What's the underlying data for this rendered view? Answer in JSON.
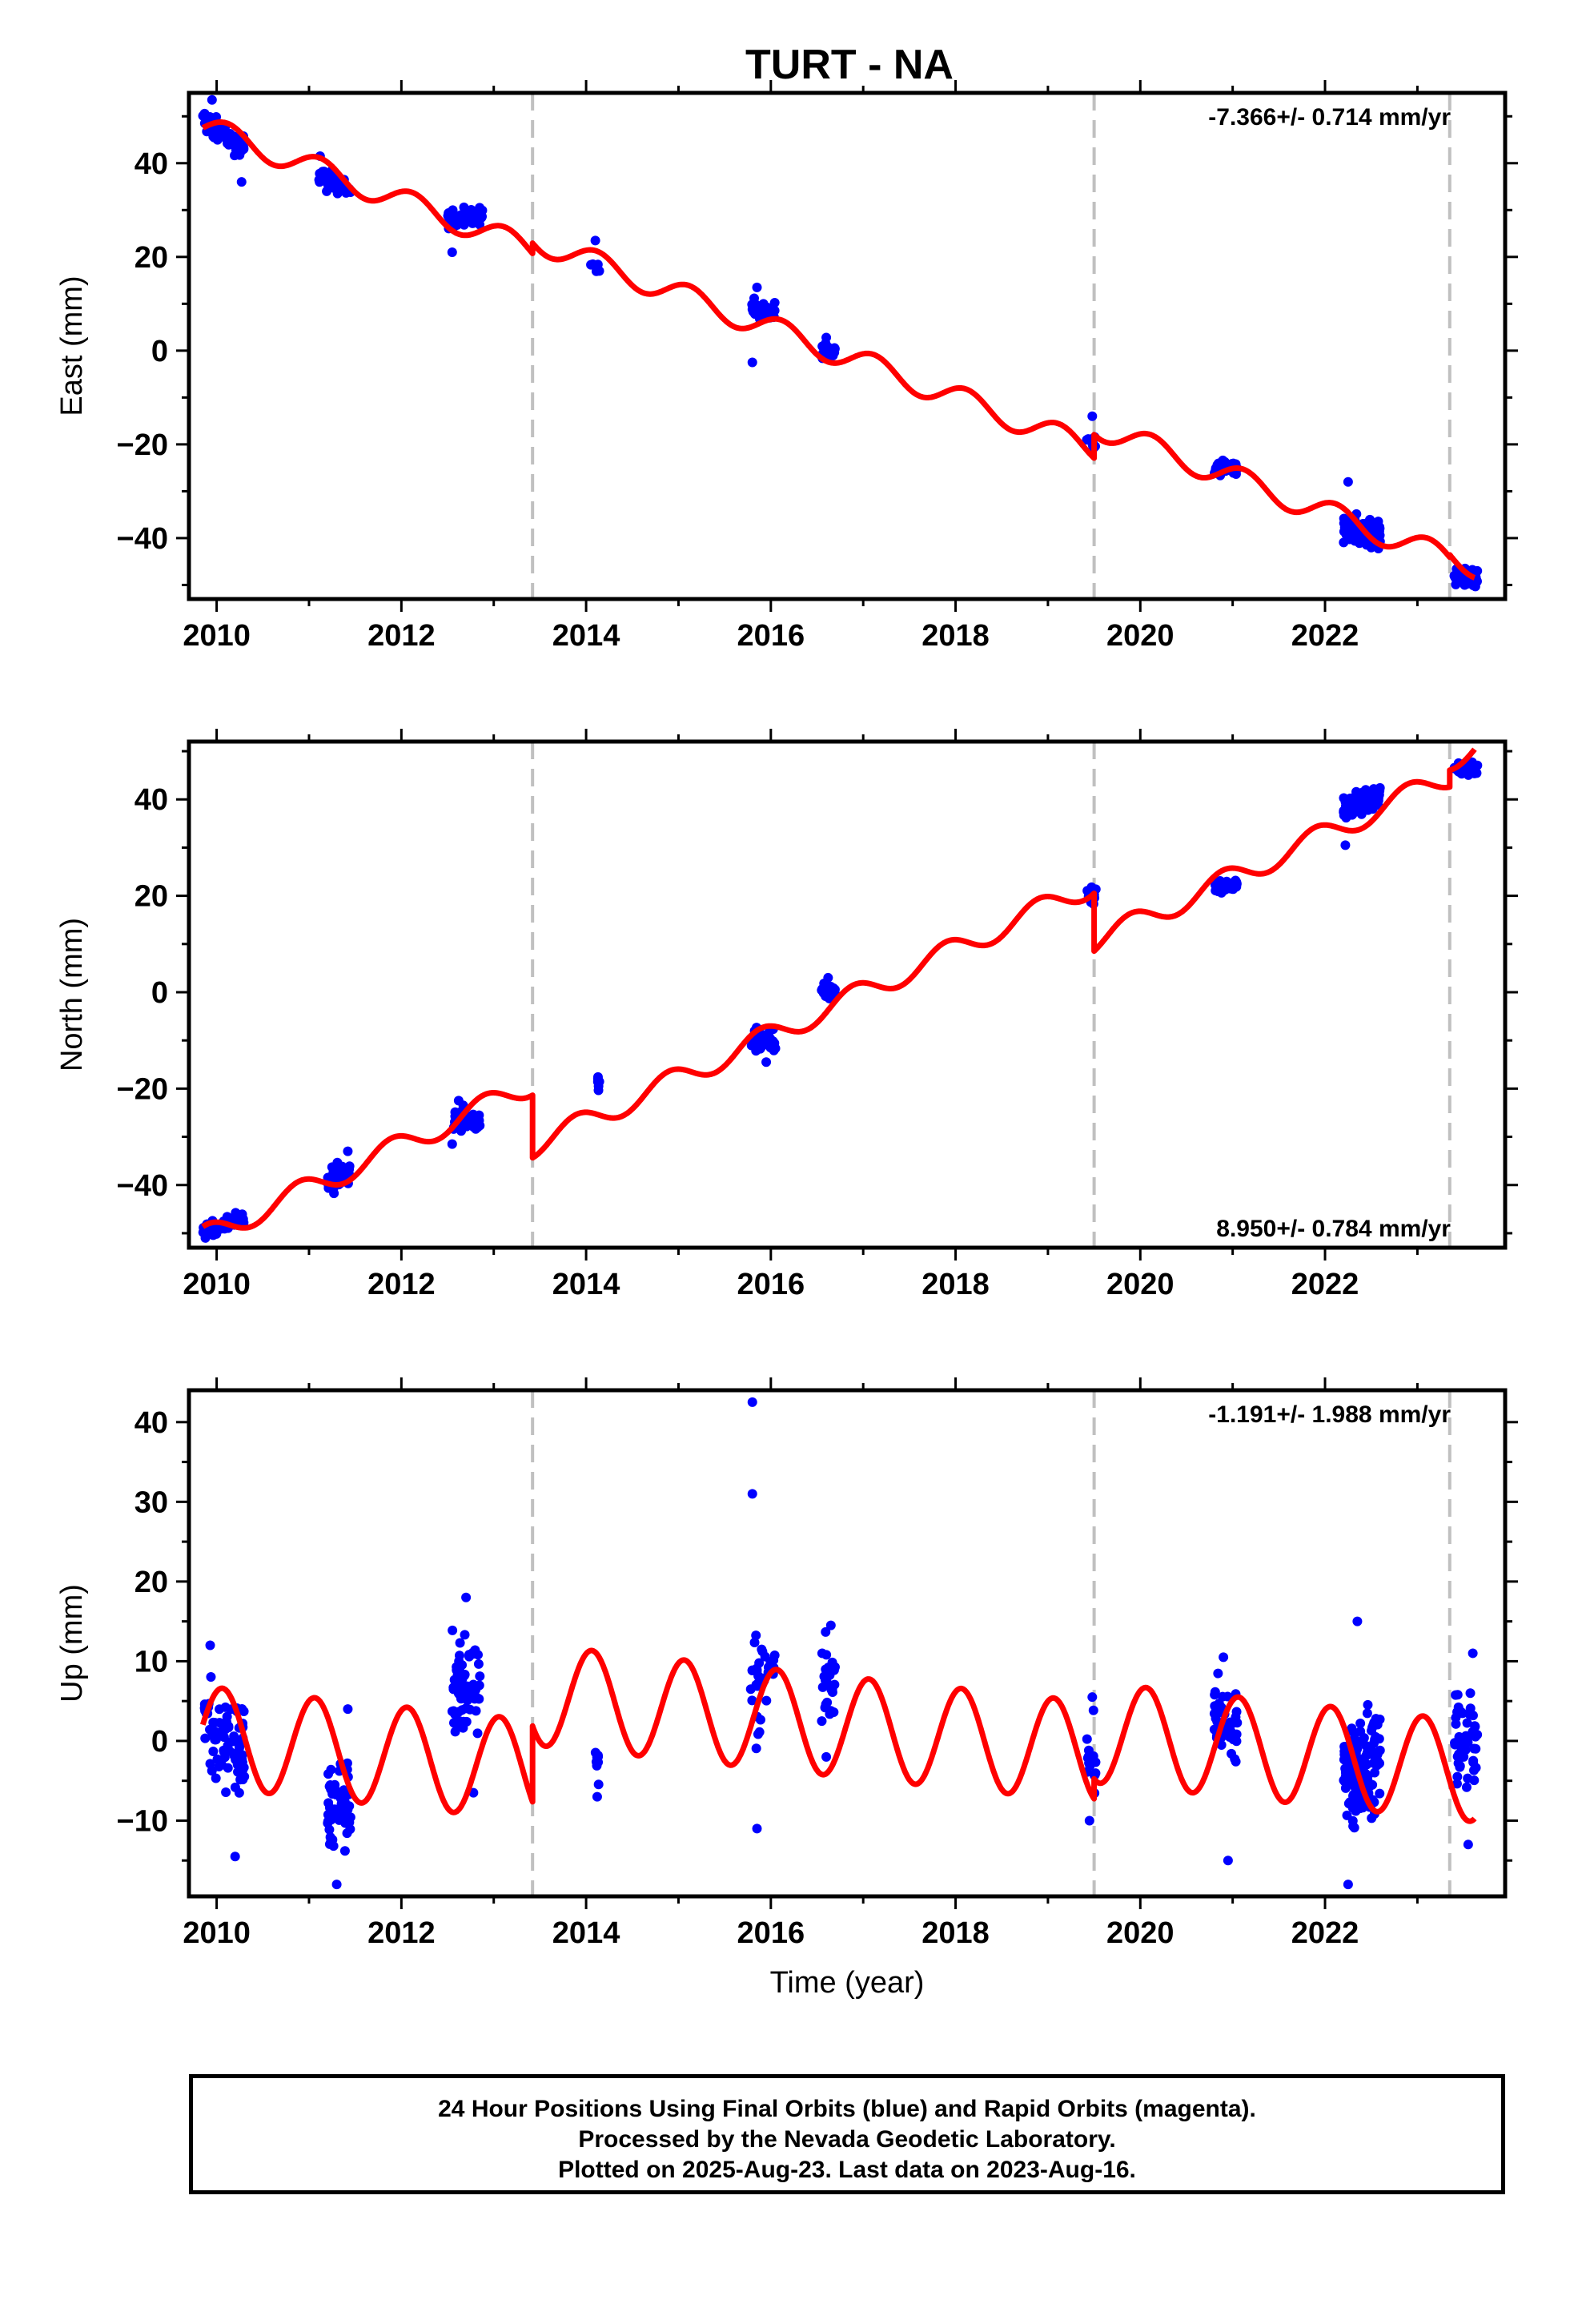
{
  "title": "TURT - NA",
  "footer": {
    "line1": "24 Hour Positions Using Final Orbits (blue) and Rapid Orbits (magenta).",
    "line2": "Processed by the Nevada Geodetic Laboratory.",
    "line3": "Plotted on 2025-Aug-23. Last data on 2023-Aug-16."
  },
  "colors": {
    "data": "#0000ff",
    "model": "#ff0000",
    "break_lines": "#c0c0c0",
    "axis": "#000000"
  },
  "chart_data": [
    {
      "type": "scatter",
      "ylabel": "East (mm)",
      "xlabel": "",
      "xlim": [
        2009.7,
        2023.95
      ],
      "ylim": [
        -53,
        55
      ],
      "xticks": [
        2010,
        2012,
        2014,
        2016,
        2018,
        2020,
        2022
      ],
      "yticks": [
        -40,
        -20,
        0,
        20,
        40
      ],
      "rate_label": "-7.366+/- 0.714 mm/yr",
      "rate_position": "top-right",
      "breaks": [
        2013.42,
        2019.5,
        2023.35
      ],
      "model": {
        "rate": -7.366,
        "t0": 2009.9,
        "offset0": 47.5,
        "annual_amp": 2.6,
        "annual_phase": 0.2,
        "steps": [
          {
            "t": 2013.42,
            "dy": 2.2
          },
          {
            "t": 2019.5,
            "dy": 5.0
          },
          {
            "t": 2023.35,
            "dy": 0.5
          }
        ]
      },
      "series": [
        {
          "clusters": [
            {
              "t0": 2009.85,
              "t1": 2010.3,
              "center": 46.0,
              "slope": -14.0,
              "spread": 2.0,
              "n": 70,
              "outliers": [
                [
                  2009.95,
                  53.5
                ],
                [
                  2010.27,
                  36.0
                ]
              ]
            },
            {
              "t0": 2011.1,
              "t1": 2011.45,
              "center": 36.0,
              "slope": -6.0,
              "spread": 1.8,
              "n": 45,
              "outliers": [
                [
                  2011.12,
                  41.5
                ]
              ]
            },
            {
              "t0": 2012.5,
              "t1": 2012.88,
              "center": 28.5,
              "slope": 3.0,
              "spread": 1.5,
              "n": 55,
              "outliers": [
                [
                  2012.55,
                  21.0
                ]
              ]
            },
            {
              "t0": 2014.05,
              "t1": 2014.15,
              "center": 18.0,
              "slope": 0,
              "spread": 0.8,
              "n": 5,
              "outliers": [
                [
                  2014.1,
                  23.5
                ]
              ]
            },
            {
              "t0": 2015.78,
              "t1": 2016.05,
              "center": 8.5,
              "slope": -8.0,
              "spread": 2.2,
              "n": 35,
              "outliers": [
                [
                  2015.8,
                  -2.5
                ],
                [
                  2015.85,
                  13.5
                ]
              ]
            },
            {
              "t0": 2016.55,
              "t1": 2016.7,
              "center": 0.0,
              "slope": 0,
              "spread": 1.2,
              "n": 25,
              "outliers": [
                [
                  2016.6,
                  2.8
                ]
              ]
            },
            {
              "t0": 2019.42,
              "t1": 2019.52,
              "center": -19.5,
              "slope": 0,
              "spread": 1.5,
              "n": 12,
              "outliers": [
                [
                  2019.48,
                  -14.0
                ]
              ]
            },
            {
              "t0": 2020.8,
              "t1": 2021.05,
              "center": -25.0,
              "slope": -2.0,
              "spread": 1.5,
              "n": 40,
              "outliers": []
            },
            {
              "t0": 2022.2,
              "t1": 2022.6,
              "center": -38.5,
              "slope": -2.0,
              "spread": 2.2,
              "n": 130,
              "outliers": [
                [
                  2022.25,
                  -28.0
                ]
              ]
            },
            {
              "t0": 2023.4,
              "t1": 2023.65,
              "center": -48.5,
              "slope": 0,
              "spread": 1.5,
              "n": 45,
              "outliers": []
            }
          ]
        }
      ]
    },
    {
      "type": "scatter",
      "ylabel": "North (mm)",
      "xlabel": "",
      "xlim": [
        2009.7,
        2023.95
      ],
      "ylim": [
        -53,
        52
      ],
      "xticks": [
        2010,
        2012,
        2014,
        2016,
        2018,
        2020,
        2022
      ],
      "yticks": [
        -40,
        -20,
        0,
        20,
        40
      ],
      "rate_label": "8.950+/- 0.784 mm/yr",
      "rate_position": "bottom-right",
      "breaks": [
        2013.42,
        2019.5,
        2023.35
      ],
      "model": {
        "rate": 8.95,
        "t0": 2009.9,
        "offset0": -50.5,
        "annual_amp": 2.4,
        "annual_phase": 1.6,
        "steps": [
          {
            "t": 2013.42,
            "dy": -13.0
          },
          {
            "t": 2019.5,
            "dy": -12.0
          },
          {
            "t": 2023.35,
            "dy": 3.5
          }
        ]
      },
      "series": [
        {
          "clusters": [
            {
              "t0": 2009.85,
              "t1": 2010.3,
              "center": -48.5,
              "slope": 7.0,
              "spread": 1.3,
              "n": 70,
              "outliers": []
            },
            {
              "t0": 2011.2,
              "t1": 2011.45,
              "center": -38.5,
              "slope": 8.0,
              "spread": 2.2,
              "n": 40,
              "outliers": [
                [
                  2011.42,
                  -33.0
                ]
              ]
            },
            {
              "t0": 2012.55,
              "t1": 2012.85,
              "center": -26.5,
              "slope": 0,
              "spread": 2.0,
              "n": 45,
              "outliers": [
                [
                  2012.55,
                  -31.5
                ],
                [
                  2012.62,
                  -22.5
                ]
              ]
            },
            {
              "t0": 2014.12,
              "t1": 2014.16,
              "center": -19.0,
              "slope": 0,
              "spread": 1.2,
              "n": 8,
              "outliers": []
            },
            {
              "t0": 2015.78,
              "t1": 2016.05,
              "center": -10.0,
              "slope": 0,
              "spread": 2.0,
              "n": 35,
              "outliers": [
                [
                  2015.95,
                  -14.5
                ]
              ]
            },
            {
              "t0": 2016.55,
              "t1": 2016.7,
              "center": 0.0,
              "slope": 0,
              "spread": 1.5,
              "n": 25,
              "outliers": [
                [
                  2016.62,
                  3.0
                ]
              ]
            },
            {
              "t0": 2019.42,
              "t1": 2019.52,
              "center": 20.0,
              "slope": 0,
              "spread": 1.2,
              "n": 12,
              "outliers": []
            },
            {
              "t0": 2020.8,
              "t1": 2021.05,
              "center": 22.0,
              "slope": 4.0,
              "spread": 1.0,
              "n": 40,
              "outliers": []
            },
            {
              "t0": 2022.2,
              "t1": 2022.6,
              "center": 39.5,
              "slope": 6.0,
              "spread": 1.8,
              "n": 130,
              "outliers": [
                [
                  2022.22,
                  30.5
                ]
              ]
            },
            {
              "t0": 2023.4,
              "t1": 2023.65,
              "center": 46.5,
              "slope": 0,
              "spread": 1.2,
              "n": 45,
              "outliers": []
            }
          ]
        }
      ]
    },
    {
      "type": "scatter",
      "ylabel": "Up (mm)",
      "xlabel": "Time (year)",
      "xlim": [
        2009.7,
        2023.95
      ],
      "ylim": [
        -19.5,
        44
      ],
      "xticks": [
        2010,
        2012,
        2014,
        2016,
        2018,
        2020,
        2022
      ],
      "yticks": [
        -10,
        0,
        10,
        20,
        30,
        40
      ],
      "rate_label": "-1.191+/- 1.988 mm/yr",
      "rate_position": "top-right",
      "breaks": [
        2013.42,
        2019.5,
        2023.35
      ],
      "model": {
        "rate": -1.191,
        "t0": 2009.9,
        "offset0": 0.5,
        "annual_amp": 6.3,
        "annual_phase": 0.55,
        "steps": [
          {
            "t": 2013.42,
            "dy": 9.5
          },
          {
            "t": 2019.5,
            "dy": 2.5
          },
          {
            "t": 2023.35,
            "dy": 0.0
          }
        ]
      },
      "series": [
        {
          "clusters": [
            {
              "t0": 2009.85,
              "t1": 2010.3,
              "center": 0.5,
              "slope": -8.0,
              "spread": 5.5,
              "n": 80,
              "outliers": [
                [
                  2010.2,
                  -14.5
                ],
                [
                  2009.93,
                  12.0
                ]
              ]
            },
            {
              "t0": 2011.2,
              "t1": 2011.45,
              "center": -8.0,
              "slope": 8.0,
              "spread": 5.0,
              "n": 60,
              "outliers": [
                [
                  2011.3,
                  -18.0
                ],
                [
                  2011.42,
                  4.0
                ]
              ]
            },
            {
              "t0": 2012.55,
              "t1": 2012.85,
              "center": 7.0,
              "slope": 0,
              "spread": 5.0,
              "n": 70,
              "outliers": [
                [
                  2012.7,
                  18.0
                ],
                [
                  2012.78,
                  -6.5
                ]
              ]
            },
            {
              "t0": 2014.1,
              "t1": 2014.15,
              "center": -3.0,
              "slope": 0,
              "spread": 2.5,
              "n": 8,
              "outliers": [
                [
                  2014.12,
                  -7.0
                ]
              ]
            },
            {
              "t0": 2015.78,
              "t1": 2016.05,
              "center": 7.0,
              "slope": 0,
              "spread": 5.0,
              "n": 35,
              "outliers": [
                [
                  2015.8,
                  42.5
                ],
                [
                  2015.8,
                  31.0
                ],
                [
                  2015.85,
                  -11.0
                ]
              ]
            },
            {
              "t0": 2016.55,
              "t1": 2016.7,
              "center": 7.5,
              "slope": 0,
              "spread": 3.5,
              "n": 30,
              "outliers": [
                [
                  2016.6,
                  -2.0
                ],
                [
                  2016.65,
                  14.5
                ]
              ]
            },
            {
              "t0": 2019.42,
              "t1": 2019.52,
              "center": -2.0,
              "slope": 0,
              "spread": 3.5,
              "n": 15,
              "outliers": [
                [
                  2019.45,
                  -10.0
                ],
                [
                  2019.48,
                  5.5
                ]
              ]
            },
            {
              "t0": 2020.8,
              "t1": 2021.05,
              "center": 2.0,
              "slope": -4.0,
              "spread": 4.0,
              "n": 45,
              "outliers": [
                [
                  2020.95,
                  -15.0
                ],
                [
                  2020.9,
                  10.5
                ]
              ]
            },
            {
              "t0": 2022.2,
              "t1": 2022.6,
              "center": -3.0,
              "slope": 4.0,
              "spread": 5.0,
              "n": 150,
              "outliers": [
                [
                  2022.25,
                  -18.0
                ],
                [
                  2022.35,
                  15.0
                ]
              ]
            },
            {
              "t0": 2023.4,
              "t1": 2023.65,
              "center": 0.0,
              "slope": 0,
              "spread": 5.0,
              "n": 50,
              "outliers": [
                [
                  2023.55,
                  -13.0
                ],
                [
                  2023.6,
                  11.0
                ]
              ]
            }
          ]
        }
      ]
    }
  ]
}
